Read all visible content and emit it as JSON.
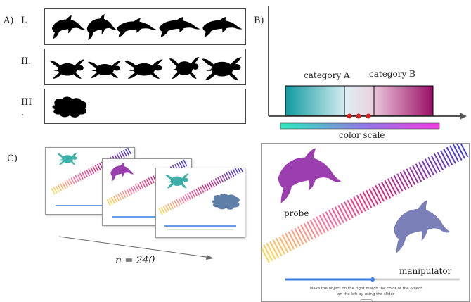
{
  "panel_a": {
    "label": "A)",
    "rows": [
      {
        "label": "I.",
        "shape": "dolphin"
      },
      {
        "label": "II.",
        "shape": "turtle"
      },
      {
        "label": "III\n.",
        "shape": "blob"
      }
    ]
  },
  "panel_b": {
    "label": "B)",
    "category_a": "category A",
    "category_b": "category B",
    "color_scale_label": "color scale"
  },
  "panel_c": {
    "label": "C)",
    "n_label": "n = 240"
  },
  "panel_d": {
    "probe_label": "probe",
    "manipulator_label": "manipulator",
    "instruction_line1": "Make the object on the right match the color of the object",
    "instruction_line2": "on the left by using the slider",
    "slider_value": 0.5
  },
  "colors": {
    "teal": "#1aa3a8",
    "purple": "#9b3fb0",
    "magenta": "#a0106a",
    "slider": "#3a7be0",
    "marker": "#d62020",
    "manipulator": "#7a7fb8",
    "turtle_teal": "#3fb0a8",
    "blob_steel": "#5f7fa8"
  }
}
